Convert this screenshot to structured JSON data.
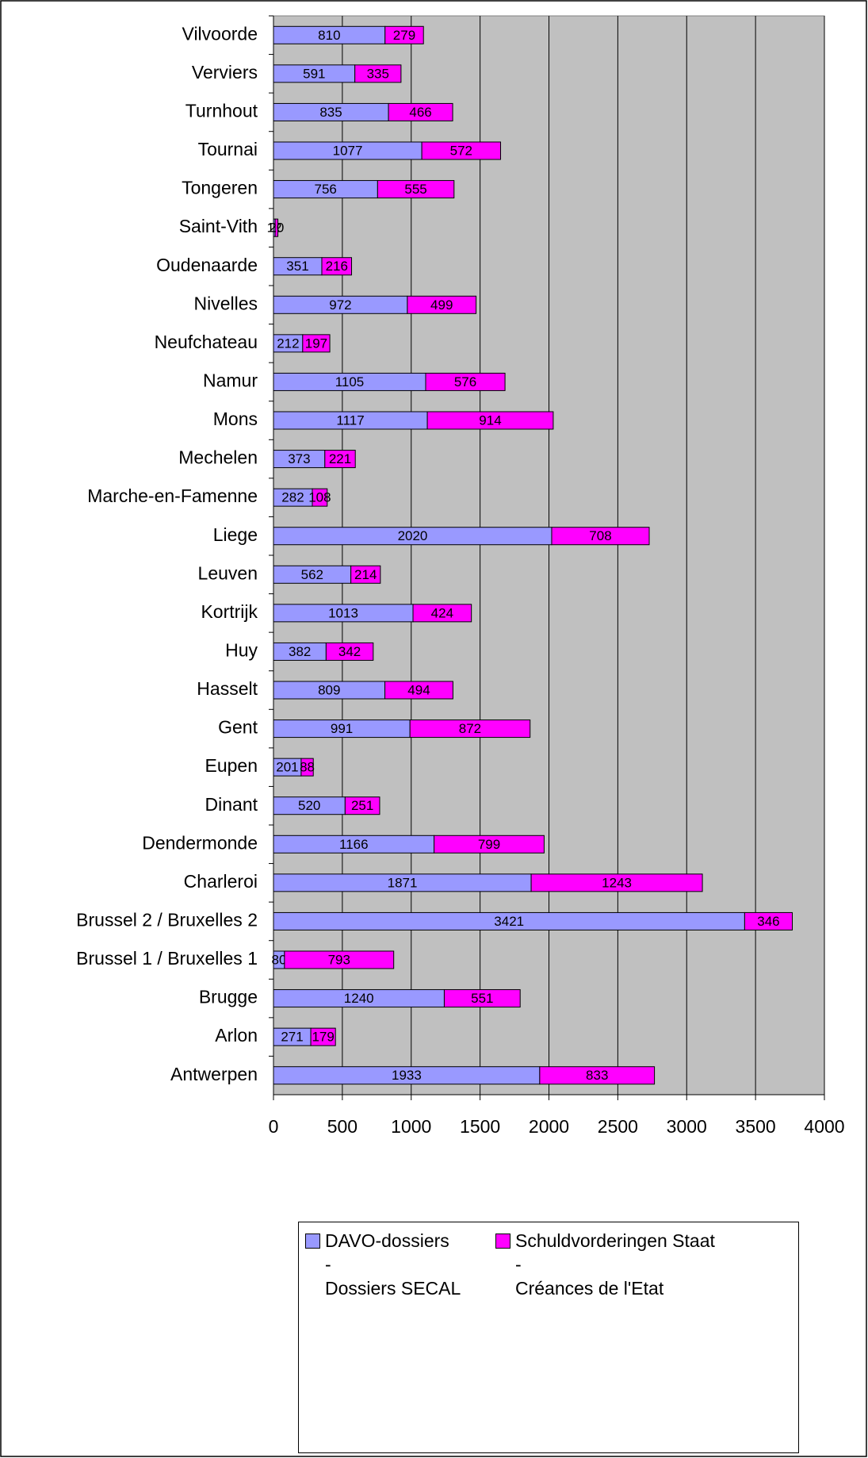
{
  "chart_data": {
    "type": "bar",
    "orientation": "horizontal",
    "stacked": true,
    "categories": [
      "Vilvoorde",
      "Verviers",
      "Turnhout",
      "Tournai",
      "Tongeren",
      "Saint-Vith",
      "Oudenaarde",
      "Nivelles",
      "Neufchateau",
      "Namur",
      "Mons",
      "Mechelen",
      "Marche-en-Famenne",
      "Liege",
      "Leuven",
      "Kortrijk",
      "Huy",
      "Hasselt",
      "Gent",
      "Eupen",
      "Dinant",
      "Dendermonde",
      "Charleroi",
      "Brussel 2 / Bruxelles 2",
      "Brussel 1 / Bruxelles 1",
      "Brugge",
      "Arlon",
      "Antwerpen"
    ],
    "series": [
      {
        "name": "DAVO-dossiers\n-\nDossiers SECAL",
        "color": "#9999ff",
        "values": [
          810,
          591,
          835,
          1077,
          756,
          12,
          351,
          972,
          212,
          1105,
          1117,
          373,
          282,
          2020,
          562,
          1013,
          382,
          809,
          991,
          201,
          520,
          1166,
          1871,
          3421,
          80,
          1240,
          271,
          1933
        ]
      },
      {
        "name": "Schuldvorderingen Staat\n-\nCréances de l'Etat",
        "color": "#ff00ff",
        "values": [
          279,
          335,
          466,
          572,
          555,
          20,
          216,
          499,
          197,
          576,
          914,
          221,
          108,
          708,
          214,
          424,
          342,
          494,
          872,
          88,
          251,
          799,
          1243,
          346,
          793,
          551,
          179,
          833
        ]
      }
    ],
    "xlim": [
      0,
      4000
    ],
    "xticks": [
      0,
      500,
      1000,
      1500,
      2000,
      2500,
      3000,
      3500,
      4000
    ],
    "grid": true,
    "plot_background": "#c0c0c0",
    "legend": "bottom"
  }
}
